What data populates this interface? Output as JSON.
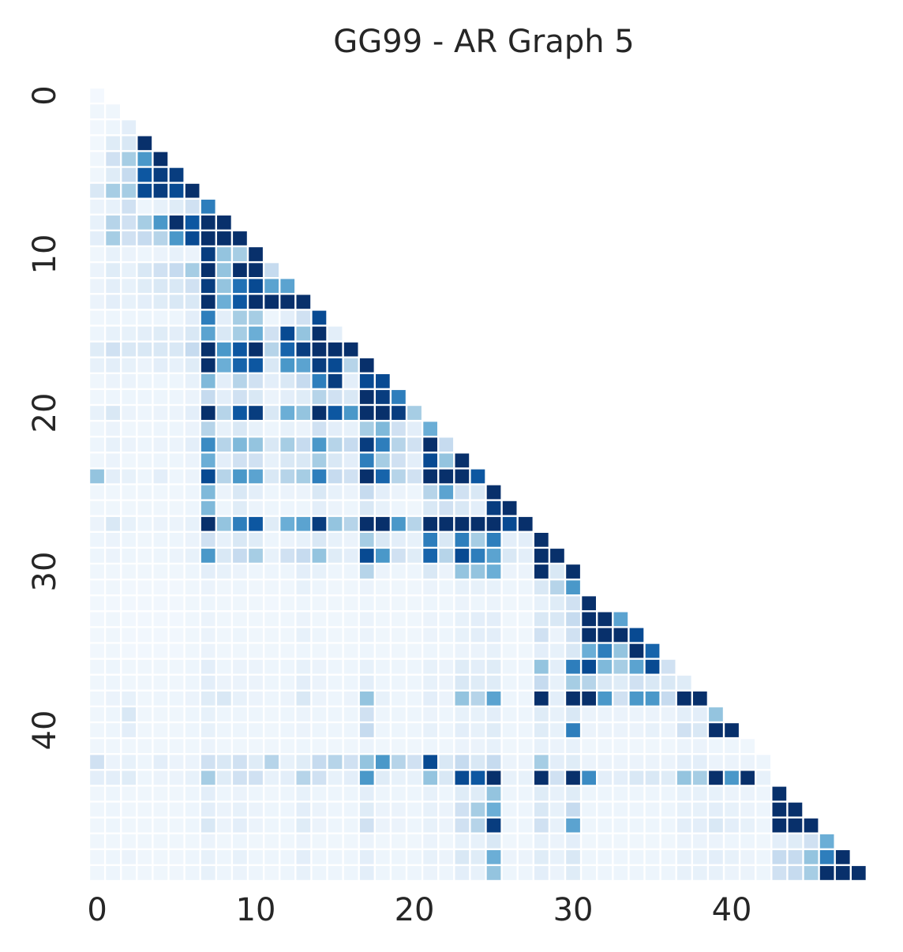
{
  "chart_data": {
    "type": "heatmap",
    "title": "GG99 - AR Graph 5",
    "xlabel": "",
    "ylabel": "",
    "n": 49,
    "mask": "lower-triangle-including-diagonal",
    "colormap": "Blues",
    "colorbar": false,
    "grid": false,
    "x_ticks": [
      0,
      10,
      20,
      30,
      40
    ],
    "y_ticks": [
      0,
      10,
      20,
      30,
      40
    ],
    "vrange": [
      0,
      1
    ],
    "rows": [
      [
        0.02
      ],
      [
        0.04,
        0.04
      ],
      [
        0.03,
        0.05,
        0.1
      ],
      [
        0.03,
        0.12,
        0.15,
        1.0
      ],
      [
        0.04,
        0.2,
        0.35,
        0.6,
        1.0
      ],
      [
        0.04,
        0.12,
        0.25,
        0.85,
        0.95,
        0.95
      ],
      [
        0.15,
        0.35,
        0.35,
        0.9,
        0.95,
        0.9,
        1.0
      ],
      [
        0.06,
        0.08,
        0.2,
        0.05,
        0.08,
        0.12,
        0.2,
        0.7
      ],
      [
        0.08,
        0.3,
        0.2,
        0.35,
        0.6,
        1.0,
        0.85,
        1.0,
        1.0
      ],
      [
        0.1,
        0.35,
        0.2,
        0.25,
        0.3,
        0.6,
        0.9,
        1.0,
        1.0,
        1.0
      ],
      [
        0.04,
        0.08,
        0.06,
        0.05,
        0.06,
        0.08,
        0.06,
        0.95,
        0.4,
        0.35,
        1.0
      ],
      [
        0.06,
        0.12,
        0.08,
        0.15,
        0.2,
        0.25,
        0.35,
        1.0,
        0.4,
        1.0,
        1.0,
        0.25
      ],
      [
        0.06,
        0.1,
        0.08,
        0.12,
        0.15,
        0.15,
        0.2,
        0.95,
        0.4,
        0.75,
        0.9,
        0.55,
        0.55
      ],
      [
        0.06,
        0.1,
        0.08,
        0.1,
        0.12,
        0.15,
        0.15,
        1.0,
        0.5,
        0.85,
        1.0,
        1.0,
        1.0,
        1.0
      ],
      [
        0.04,
        0.05,
        0.05,
        0.05,
        0.05,
        0.05,
        0.1,
        0.7,
        0.1,
        0.35,
        0.35,
        0.05,
        0.1,
        0.2,
        0.9
      ],
      [
        0.05,
        0.08,
        0.08,
        0.1,
        0.12,
        0.1,
        0.15,
        0.55,
        0.15,
        0.35,
        0.5,
        0.2,
        0.9,
        0.4,
        1.0,
        0.1
      ],
      [
        0.12,
        0.2,
        0.15,
        0.15,
        0.15,
        0.15,
        0.25,
        1.0,
        0.6,
        0.85,
        1.0,
        0.3,
        0.8,
        0.95,
        1.0,
        1.0,
        1.0
      ],
      [
        0.08,
        0.1,
        0.08,
        0.06,
        0.1,
        0.08,
        0.12,
        1.0,
        0.5,
        0.8,
        0.85,
        0.15,
        0.6,
        0.55,
        0.95,
        0.9,
        0.3,
        1.0
      ],
      [
        0.04,
        0.06,
        0.06,
        0.05,
        0.05,
        0.05,
        0.08,
        0.45,
        0.1,
        0.3,
        0.2,
        0.1,
        0.15,
        0.25,
        0.7,
        0.95,
        0.1,
        0.9,
        0.9
      ],
      [
        0.04,
        0.05,
        0.05,
        0.05,
        0.05,
        0.05,
        0.06,
        0.25,
        0.1,
        0.2,
        0.15,
        0.06,
        0.1,
        0.12,
        0.3,
        0.2,
        0.15,
        1.0,
        0.95,
        0.7
      ],
      [
        0.08,
        0.15,
        0.06,
        0.05,
        0.06,
        0.06,
        0.1,
        1.0,
        0.3,
        0.85,
        0.95,
        0.15,
        0.5,
        0.4,
        1.0,
        0.85,
        0.6,
        1.0,
        1.0,
        0.95,
        0.35
      ],
      [
        0.04,
        0.06,
        0.04,
        0.04,
        0.05,
        0.05,
        0.06,
        0.3,
        0.08,
        0.15,
        0.08,
        0.05,
        0.08,
        0.06,
        0.2,
        0.1,
        0.08,
        0.35,
        0.45,
        0.2,
        0.1,
        0.5
      ],
      [
        0.05,
        0.08,
        0.06,
        0.05,
        0.06,
        0.06,
        0.1,
        0.65,
        0.3,
        0.45,
        0.4,
        0.15,
        0.35,
        0.25,
        0.6,
        0.3,
        0.25,
        0.95,
        0.7,
        0.3,
        0.2,
        1.0,
        0.25
      ],
      [
        0.04,
        0.06,
        0.04,
        0.04,
        0.05,
        0.05,
        0.06,
        0.5,
        0.1,
        0.2,
        0.2,
        0.08,
        0.15,
        0.15,
        0.35,
        0.15,
        0.1,
        0.7,
        0.35,
        0.2,
        0.1,
        0.9,
        0.4,
        1.0
      ],
      [
        0.4,
        0.1,
        0.08,
        0.05,
        0.1,
        0.05,
        0.06,
        0.9,
        0.3,
        0.6,
        0.55,
        0.15,
        0.3,
        0.35,
        0.7,
        0.25,
        0.2,
        1.0,
        0.8,
        0.3,
        0.2,
        1.0,
        1.0,
        1.0,
        0.85
      ],
      [
        0.04,
        0.04,
        0.04,
        0.04,
        0.04,
        0.04,
        0.05,
        0.45,
        0.06,
        0.15,
        0.1,
        0.05,
        0.06,
        0.06,
        0.15,
        0.08,
        0.06,
        0.25,
        0.1,
        0.06,
        0.05,
        0.3,
        0.55,
        0.2,
        0.15,
        1.0
      ],
      [
        0.04,
        0.04,
        0.04,
        0.04,
        0.04,
        0.04,
        0.05,
        0.45,
        0.05,
        0.12,
        0.06,
        0.05,
        0.05,
        0.05,
        0.1,
        0.06,
        0.05,
        0.15,
        0.08,
        0.05,
        0.04,
        0.15,
        0.2,
        0.15,
        0.1,
        0.95,
        1.0
      ],
      [
        0.06,
        0.15,
        0.08,
        0.05,
        0.06,
        0.06,
        0.08,
        1.0,
        0.4,
        0.7,
        0.85,
        0.12,
        0.5,
        0.55,
        0.95,
        0.4,
        0.3,
        1.0,
        1.0,
        0.6,
        0.3,
        1.0,
        1.0,
        1.0,
        1.0,
        1.0,
        0.9,
        1.0
      ],
      [
        0.05,
        0.06,
        0.05,
        0.04,
        0.05,
        0.05,
        0.06,
        0.2,
        0.08,
        0.15,
        0.12,
        0.05,
        0.06,
        0.08,
        0.15,
        0.08,
        0.06,
        0.35,
        0.15,
        0.1,
        0.08,
        0.7,
        0.15,
        0.7,
        0.35,
        0.7,
        0.1,
        0.1,
        1.0
      ],
      [
        0.05,
        0.06,
        0.05,
        0.04,
        0.05,
        0.06,
        0.08,
        0.6,
        0.15,
        0.25,
        0.35,
        0.08,
        0.2,
        0.25,
        0.4,
        0.12,
        0.1,
        0.9,
        0.6,
        0.2,
        0.12,
        0.8,
        0.3,
        0.9,
        0.7,
        0.55,
        0.15,
        0.1,
        1.0,
        1.0
      ],
      [
        0.04,
        0.04,
        0.04,
        0.04,
        0.04,
        0.04,
        0.05,
        0.1,
        0.08,
        0.06,
        0.05,
        0.05,
        0.05,
        0.1,
        0.08,
        0.05,
        0.05,
        0.3,
        0.06,
        0.05,
        0.05,
        0.15,
        0.06,
        0.4,
        0.4,
        0.5,
        0.06,
        0.06,
        1.0,
        0.15,
        1.0
      ],
      [
        0.03,
        0.04,
        0.03,
        0.03,
        0.03,
        0.03,
        0.04,
        0.06,
        0.04,
        0.05,
        0.04,
        0.04,
        0.04,
        0.08,
        0.05,
        0.04,
        0.04,
        0.06,
        0.04,
        0.04,
        0.04,
        0.06,
        0.05,
        0.08,
        0.08,
        0.08,
        0.05,
        0.05,
        0.15,
        0.3,
        0.6
      ],
      [
        0.03,
        0.03,
        0.03,
        0.03,
        0.03,
        0.03,
        0.04,
        0.05,
        0.04,
        0.04,
        0.04,
        0.03,
        0.04,
        0.05,
        0.04,
        0.04,
        0.04,
        0.05,
        0.04,
        0.04,
        0.04,
        0.05,
        0.04,
        0.06,
        0.05,
        0.06,
        0.04,
        0.04,
        0.08,
        0.12,
        0.2,
        1.0
      ],
      [
        0.03,
        0.04,
        0.03,
        0.03,
        0.03,
        0.03,
        0.04,
        0.06,
        0.04,
        0.04,
        0.04,
        0.04,
        0.04,
        0.06,
        0.04,
        0.04,
        0.04,
        0.06,
        0.04,
        0.04,
        0.04,
        0.06,
        0.05,
        0.08,
        0.1,
        0.1,
        0.04,
        0.04,
        0.15,
        0.15,
        0.25,
        1.0,
        1.0,
        0.55
      ],
      [
        0.03,
        0.04,
        0.03,
        0.03,
        0.03,
        0.03,
        0.04,
        0.06,
        0.04,
        0.05,
        0.04,
        0.04,
        0.04,
        0.08,
        0.05,
        0.04,
        0.04,
        0.06,
        0.04,
        0.04,
        0.04,
        0.06,
        0.05,
        0.08,
        0.1,
        0.1,
        0.04,
        0.04,
        0.2,
        0.06,
        0.2,
        1.0,
        1.0,
        1.0,
        0.9
      ],
      [
        0.03,
        0.04,
        0.03,
        0.03,
        0.03,
        0.03,
        0.04,
        0.06,
        0.04,
        0.04,
        0.04,
        0.04,
        0.04,
        0.05,
        0.04,
        0.04,
        0.04,
        0.05,
        0.04,
        0.04,
        0.04,
        0.05,
        0.04,
        0.06,
        0.06,
        0.08,
        0.04,
        0.04,
        0.1,
        0.08,
        0.15,
        0.5,
        0.7,
        0.4,
        1.0,
        0.8
      ],
      [
        0.04,
        0.05,
        0.04,
        0.04,
        0.04,
        0.04,
        0.05,
        0.1,
        0.05,
        0.06,
        0.06,
        0.05,
        0.05,
        0.08,
        0.06,
        0.05,
        0.05,
        0.08,
        0.05,
        0.05,
        0.05,
        0.08,
        0.06,
        0.12,
        0.1,
        0.12,
        0.05,
        0.05,
        0.4,
        0.1,
        0.7,
        0.9,
        0.45,
        0.35,
        0.55,
        0.9,
        0.2
      ],
      [
        0.04,
        0.05,
        0.04,
        0.04,
        0.04,
        0.04,
        0.05,
        0.1,
        0.06,
        0.06,
        0.06,
        0.05,
        0.05,
        0.1,
        0.06,
        0.05,
        0.05,
        0.1,
        0.05,
        0.05,
        0.05,
        0.08,
        0.06,
        0.15,
        0.12,
        0.12,
        0.05,
        0.05,
        0.25,
        0.08,
        0.35,
        0.3,
        0.15,
        0.12,
        0.2,
        0.15,
        0.15,
        0.12
      ],
      [
        0.04,
        0.06,
        0.08,
        0.04,
        0.05,
        0.05,
        0.06,
        0.12,
        0.15,
        0.08,
        0.06,
        0.05,
        0.06,
        0.15,
        0.06,
        0.05,
        0.06,
        0.4,
        0.08,
        0.05,
        0.05,
        0.1,
        0.06,
        0.4,
        0.3,
        0.55,
        0.05,
        0.05,
        1.0,
        0.1,
        1.0,
        1.0,
        0.6,
        0.2,
        0.6,
        0.6,
        0.25,
        1.0,
        1.0
      ],
      [
        0.04,
        0.05,
        0.15,
        0.04,
        0.04,
        0.04,
        0.05,
        0.08,
        0.05,
        0.05,
        0.05,
        0.04,
        0.05,
        0.06,
        0.05,
        0.05,
        0.05,
        0.2,
        0.05,
        0.05,
        0.05,
        0.06,
        0.05,
        0.08,
        0.08,
        0.1,
        0.05,
        0.05,
        0.12,
        0.08,
        0.15,
        0.06,
        0.06,
        0.06,
        0.06,
        0.06,
        0.06,
        0.1,
        0.1,
        0.4
      ],
      [
        0.04,
        0.05,
        0.1,
        0.04,
        0.04,
        0.04,
        0.05,
        0.08,
        0.05,
        0.05,
        0.05,
        0.04,
        0.05,
        0.06,
        0.05,
        0.05,
        0.05,
        0.25,
        0.05,
        0.05,
        0.05,
        0.08,
        0.05,
        0.1,
        0.08,
        0.12,
        0.05,
        0.05,
        0.12,
        0.08,
        0.7,
        0.06,
        0.06,
        0.06,
        0.06,
        0.08,
        0.06,
        0.2,
        0.15,
        1.0,
        1.0
      ],
      [
        0.04,
        0.04,
        0.04,
        0.04,
        0.04,
        0.04,
        0.04,
        0.06,
        0.04,
        0.04,
        0.04,
        0.04,
        0.04,
        0.05,
        0.04,
        0.04,
        0.04,
        0.06,
        0.04,
        0.04,
        0.04,
        0.05,
        0.04,
        0.06,
        0.06,
        0.08,
        0.04,
        0.04,
        0.08,
        0.06,
        0.08,
        0.04,
        0.04,
        0.04,
        0.04,
        0.04,
        0.04,
        0.06,
        0.06,
        0.05,
        0.05,
        0.04
      ],
      [
        0.2,
        0.06,
        0.08,
        0.05,
        0.1,
        0.06,
        0.06,
        0.2,
        0.15,
        0.2,
        0.12,
        0.3,
        0.08,
        0.12,
        0.25,
        0.3,
        0.2,
        0.4,
        0.6,
        0.3,
        0.2,
        0.9,
        0.15,
        0.25,
        0.15,
        0.25,
        0.06,
        0.06,
        0.35,
        0.1,
        0.12,
        0.06,
        0.06,
        0.06,
        0.06,
        0.06,
        0.06,
        0.1,
        0.1,
        0.06,
        0.06,
        0.06,
        0.05
      ],
      [
        0.1,
        0.1,
        0.12,
        0.05,
        0.06,
        0.06,
        0.08,
        0.35,
        0.12,
        0.2,
        0.2,
        0.08,
        0.1,
        0.3,
        0.2,
        0.08,
        0.1,
        0.6,
        0.12,
        0.08,
        0.08,
        0.4,
        0.15,
        0.9,
        0.85,
        1.0,
        0.08,
        0.08,
        1.0,
        0.2,
        1.0,
        0.65,
        0.1,
        0.1,
        0.15,
        0.15,
        0.12,
        0.4,
        0.35,
        1.0,
        0.6,
        1.0,
        0.08
      ],
      [
        0.04,
        0.05,
        0.04,
        0.04,
        0.04,
        0.04,
        0.05,
        0.1,
        0.05,
        0.06,
        0.05,
        0.04,
        0.05,
        0.08,
        0.05,
        0.05,
        0.05,
        0.1,
        0.05,
        0.05,
        0.05,
        0.08,
        0.05,
        0.12,
        0.12,
        0.4,
        0.05,
        0.05,
        0.12,
        0.08,
        0.12,
        0.05,
        0.05,
        0.05,
        0.05,
        0.05,
        0.05,
        0.08,
        0.08,
        0.08,
        0.06,
        0.06,
        0.05,
        1.0
      ],
      [
        0.04,
        0.05,
        0.04,
        0.04,
        0.04,
        0.04,
        0.05,
        0.1,
        0.06,
        0.08,
        0.06,
        0.05,
        0.05,
        0.1,
        0.06,
        0.05,
        0.05,
        0.12,
        0.06,
        0.06,
        0.05,
        0.08,
        0.06,
        0.2,
        0.35,
        0.5,
        0.05,
        0.05,
        0.15,
        0.08,
        0.25,
        0.05,
        0.05,
        0.05,
        0.05,
        0.05,
        0.05,
        0.08,
        0.08,
        0.1,
        0.08,
        0.06,
        0.05,
        1.0,
        1.0
      ],
      [
        0.04,
        0.05,
        0.04,
        0.04,
        0.04,
        0.04,
        0.05,
        0.15,
        0.06,
        0.1,
        0.06,
        0.05,
        0.05,
        0.12,
        0.06,
        0.05,
        0.05,
        0.2,
        0.06,
        0.06,
        0.05,
        0.08,
        0.06,
        0.2,
        0.3,
        0.95,
        0.05,
        0.05,
        0.2,
        0.08,
        0.55,
        0.05,
        0.05,
        0.05,
        0.05,
        0.05,
        0.05,
        0.1,
        0.1,
        0.15,
        0.1,
        0.08,
        0.05,
        1.0,
        1.0,
        1.0
      ],
      [
        0.04,
        0.04,
        0.04,
        0.04,
        0.04,
        0.04,
        0.04,
        0.06,
        0.04,
        0.05,
        0.04,
        0.04,
        0.04,
        0.06,
        0.04,
        0.04,
        0.04,
        0.06,
        0.04,
        0.04,
        0.04,
        0.06,
        0.04,
        0.08,
        0.08,
        0.15,
        0.04,
        0.04,
        0.08,
        0.06,
        0.1,
        0.04,
        0.04,
        0.04,
        0.04,
        0.04,
        0.04,
        0.06,
        0.06,
        0.06,
        0.05,
        0.05,
        0.04,
        0.1,
        0.12,
        0.2,
        0.5
      ],
      [
        0.04,
        0.05,
        0.06,
        0.04,
        0.04,
        0.04,
        0.05,
        0.08,
        0.05,
        0.08,
        0.05,
        0.05,
        0.05,
        0.1,
        0.05,
        0.05,
        0.05,
        0.1,
        0.05,
        0.05,
        0.05,
        0.08,
        0.06,
        0.15,
        0.12,
        0.5,
        0.06,
        0.06,
        0.12,
        0.08,
        0.15,
        0.05,
        0.05,
        0.05,
        0.05,
        0.05,
        0.05,
        0.08,
        0.08,
        0.1,
        0.08,
        0.06,
        0.05,
        0.25,
        0.25,
        0.4,
        0.7,
        1.0
      ],
      [
        0.04,
        0.05,
        0.04,
        0.04,
        0.04,
        0.04,
        0.05,
        0.08,
        0.05,
        0.06,
        0.05,
        0.04,
        0.05,
        0.08,
        0.05,
        0.05,
        0.05,
        0.1,
        0.05,
        0.05,
        0.05,
        0.06,
        0.05,
        0.1,
        0.08,
        0.4,
        0.05,
        0.05,
        0.1,
        0.06,
        0.12,
        0.05,
        0.05,
        0.05,
        0.05,
        0.05,
        0.05,
        0.08,
        0.08,
        0.08,
        0.06,
        0.06,
        0.05,
        0.2,
        0.25,
        0.35,
        1.0,
        1.0,
        1.0
      ]
    ]
  }
}
